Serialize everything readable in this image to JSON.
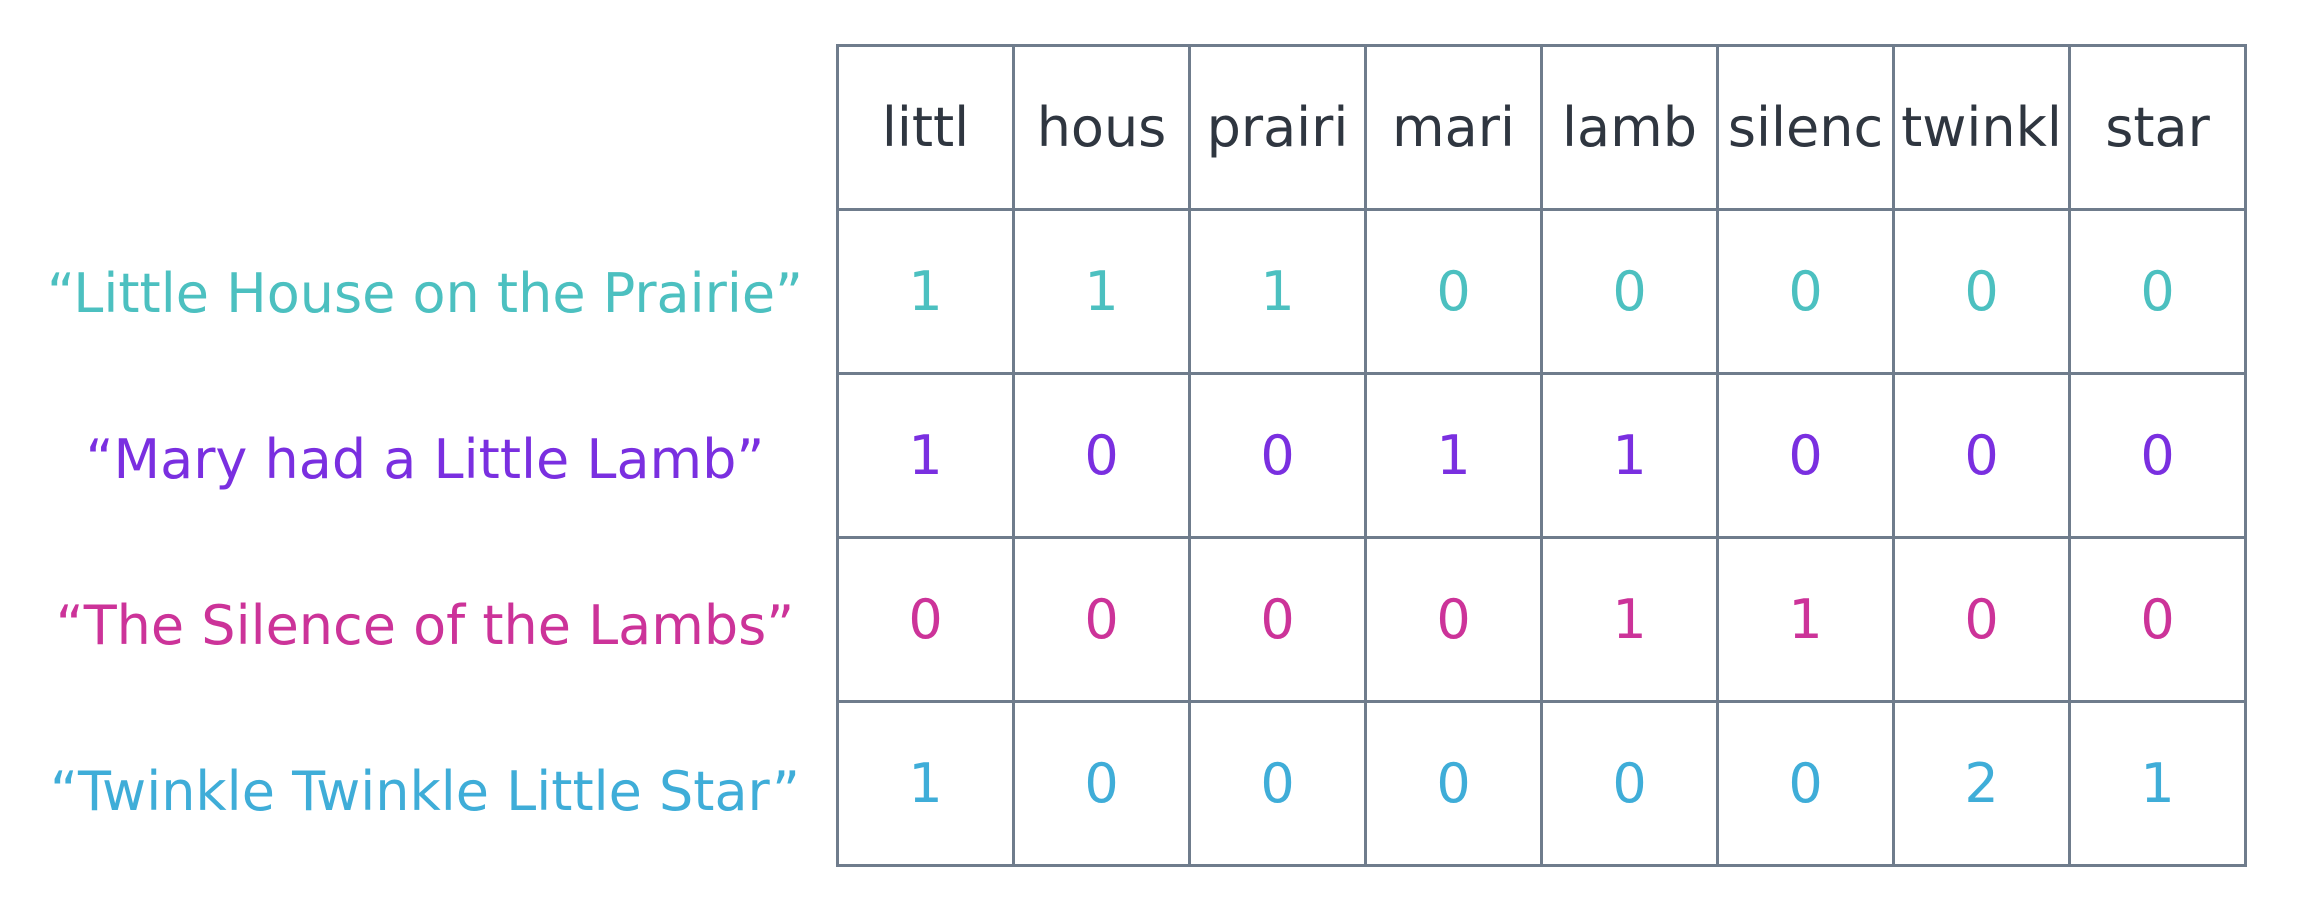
{
  "terms": [
    "littl",
    "hous",
    "prairi",
    "mari",
    "lamb",
    "silenc",
    "twinkl",
    "star"
  ],
  "documents": [
    {
      "title": "“Little House on the Prairie”",
      "color": "#4cc0c0",
      "counts": [
        1,
        1,
        1,
        0,
        0,
        0,
        0,
        0
      ]
    },
    {
      "title": "“Mary had a Little Lamb”",
      "color": "#7a2fe0",
      "counts": [
        1,
        0,
        0,
        1,
        1,
        0,
        0,
        0
      ]
    },
    {
      "title": "“The Silence of the Lambs”",
      "color": "#cc3399",
      "counts": [
        0,
        0,
        0,
        0,
        1,
        1,
        0,
        0
      ]
    },
    {
      "title": "“Twinkle Twinkle Little Star”",
      "color": "#3fadd8",
      "counts": [
        1,
        0,
        0,
        0,
        0,
        0,
        2,
        1
      ]
    }
  ]
}
